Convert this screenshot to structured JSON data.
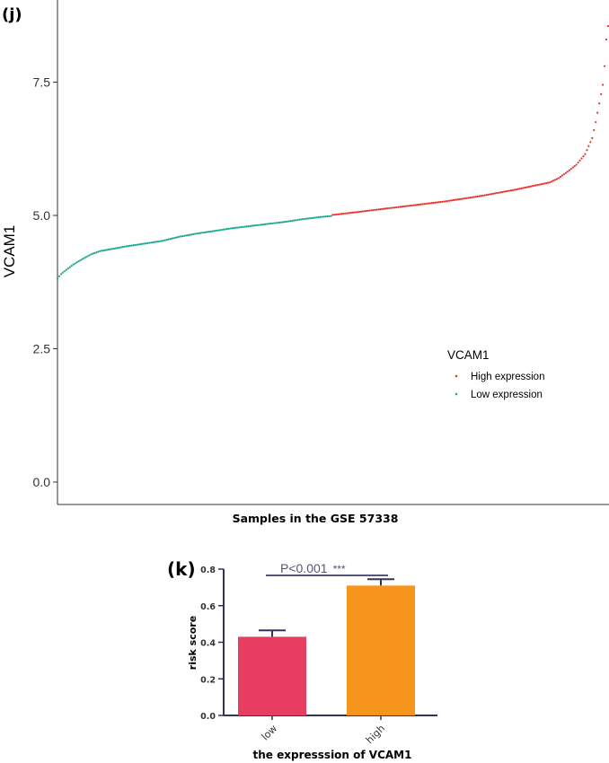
{
  "panels": {
    "j": "(j)",
    "k": "(k)"
  },
  "chart_data": [
    {
      "type": "scatter",
      "title": "",
      "xlabel": "Samples in the GSE 57338",
      "ylabel": "VCAM1",
      "ylim": [
        0.0,
        8.6
      ],
      "yticks": [
        "0.0",
        "2.5",
        "5.0",
        "7.5"
      ],
      "grid": false,
      "legend": {
        "title": "VCAM1",
        "position": "right",
        "items": [
          {
            "label": "High expression",
            "color": "#e8332a"
          },
          {
            "label": "Low expression",
            "color": "#1aa88a"
          }
        ]
      },
      "n_samples": 313,
      "series": [
        {
          "name": "Low expression",
          "color": "#1aa88a",
          "x_range": [
            1,
            156
          ],
          "profile": [
            [
              1,
              3.82
            ],
            [
              3,
              3.9
            ],
            [
              6,
              3.98
            ],
            [
              10,
              4.08
            ],
            [
              15,
              4.18
            ],
            [
              20,
              4.27
            ],
            [
              25,
              4.33
            ],
            [
              30,
              4.36
            ],
            [
              40,
              4.42
            ],
            [
              50,
              4.47
            ],
            [
              60,
              4.52
            ],
            [
              70,
              4.6
            ],
            [
              80,
              4.66
            ],
            [
              90,
              4.71
            ],
            [
              100,
              4.76
            ],
            [
              110,
              4.8
            ],
            [
              120,
              4.84
            ],
            [
              130,
              4.88
            ],
            [
              140,
              4.93
            ],
            [
              150,
              4.97
            ],
            [
              156,
              4.99
            ]
          ]
        },
        {
          "name": "High expression",
          "color": "#e8332a",
          "x_range": [
            157,
            313
          ],
          "profile": [
            [
              157,
              5.01
            ],
            [
              170,
              5.06
            ],
            [
              180,
              5.1
            ],
            [
              190,
              5.14
            ],
            [
              200,
              5.18
            ],
            [
              210,
              5.22
            ],
            [
              220,
              5.26
            ],
            [
              230,
              5.31
            ],
            [
              240,
              5.36
            ],
            [
              250,
              5.42
            ],
            [
              260,
              5.48
            ],
            [
              270,
              5.55
            ],
            [
              280,
              5.62
            ],
            [
              285,
              5.7
            ],
            [
              290,
              5.82
            ],
            [
              295,
              5.95
            ],
            [
              300,
              6.15
            ],
            [
              304,
              6.45
            ],
            [
              306,
              6.75
            ],
            [
              308,
              7.1
            ],
            [
              310,
              7.45
            ],
            [
              311,
              7.8
            ],
            [
              312,
              8.3
            ],
            [
              313,
              8.55
            ]
          ]
        }
      ]
    },
    {
      "type": "bar",
      "title": "",
      "xlabel": "the expresssion of VCAM1",
      "ylabel": "risk score",
      "ylim": [
        0.0,
        0.8
      ],
      "yticks": [
        "0.0",
        "0.2",
        "0.4",
        "0.6",
        "0.8"
      ],
      "categories": [
        "low",
        "high"
      ],
      "values": [
        0.43,
        0.71
      ],
      "error_upper": [
        0.465,
        0.745
      ],
      "colors": [
        "#e73d60",
        "#f6951c"
      ],
      "annotation": {
        "text": "P<0.001",
        "stars": "***"
      }
    }
  ]
}
